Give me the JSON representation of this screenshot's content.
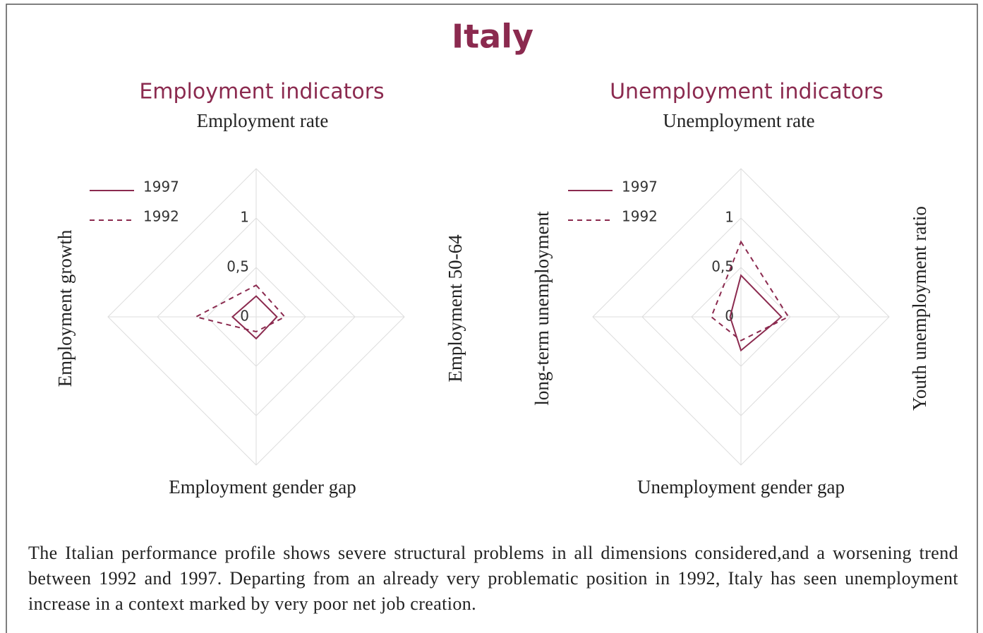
{
  "title": "Italy",
  "caption": "The Italian performance profile shows severe structural problems in all dimensions considered,and a worsening trend between 1992 and 1997. Departing from an already very problematic position in 1992, Italy has seen unemployment increase in a context marked by very poor net job creation.",
  "chart_data": [
    {
      "type": "radar",
      "title": "Employment indicators",
      "categories": [
        "Employment rate",
        "Employment 50-64",
        "Employment gender gap",
        "Employment growth"
      ],
      "rlim": [
        0,
        1.5
      ],
      "rticks": [
        0,
        {
          "value": 0.5,
          "label": "0,5"
        },
        1
      ],
      "grid": true,
      "series": [
        {
          "name": "1997",
          "color": "#8b2a4f",
          "style": "solid",
          "values": [
            0.21,
            0.21,
            0.22,
            0.24
          ]
        },
        {
          "name": "1992",
          "color": "#8b2a4f",
          "style": "dashed",
          "values": [
            0.32,
            0.29,
            0.15,
            0.61
          ]
        }
      ]
    },
    {
      "type": "radar",
      "title": "Unemployment indicators",
      "categories": [
        "Unemployment rate",
        "Youth unemployment ratio",
        "Unemployment gender gap",
        "long-term unemployment"
      ],
      "rlim": [
        0,
        1.5
      ],
      "rticks": [
        0,
        {
          "value": 0.5,
          "label": "0,5"
        },
        1
      ],
      "grid": true,
      "series": [
        {
          "name": "1997",
          "color": "#8b2a4f",
          "style": "solid",
          "values": [
            0.42,
            0.41,
            0.34,
            0.11
          ]
        },
        {
          "name": "1992",
          "color": "#8b2a4f",
          "style": "dashed",
          "values": [
            0.76,
            0.48,
            0.24,
            0.3
          ]
        }
      ]
    }
  ]
}
